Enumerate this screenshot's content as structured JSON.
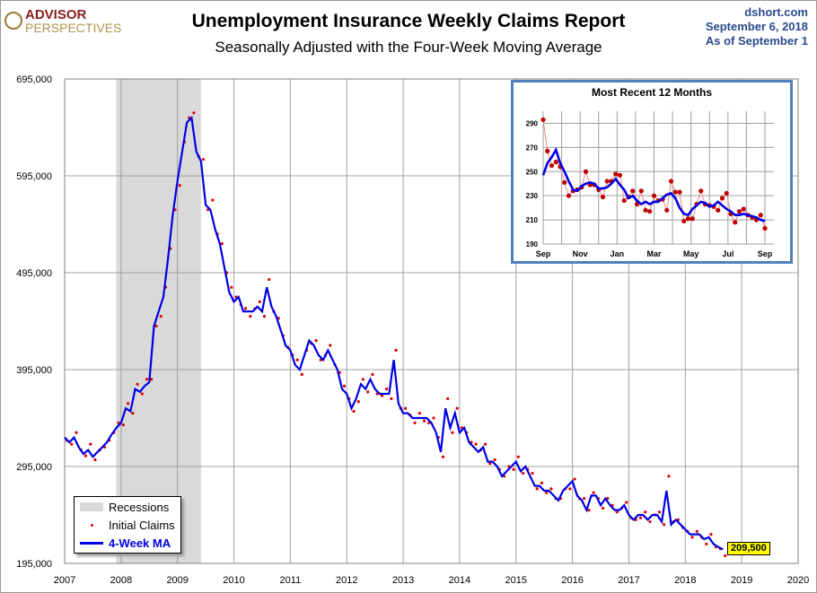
{
  "header": {
    "logo_line1": "ADVISOR",
    "logo_line2": "PERSPECTIVES",
    "site": "dshort.com",
    "date": "September 6, 2018",
    "as_of": "As of September 1"
  },
  "colors": {
    "claims": "#e00000",
    "ma": "#0000e6",
    "recession": "#d9d9d9",
    "inset_border": "#4f81bd",
    "inset_claims": "#c00000",
    "badge": "#ffff00"
  },
  "chart_data": [
    {
      "type": "line",
      "title": "Unemployment Insurance Weekly Claims Report",
      "subtitle": "Seasonally Adjusted with the Four-Week Moving Average",
      "x_ticks": [
        "2007",
        "2008",
        "2009",
        "2010",
        "2011",
        "2012",
        "2013",
        "2014",
        "2015",
        "2016",
        "2017",
        "2018",
        "2019",
        "2020"
      ],
      "y_ticks": [
        "195,000",
        "295,000",
        "395,000",
        "495,000",
        "595,000",
        "695,000"
      ],
      "ylim": [
        195000,
        695000
      ],
      "xlim": [
        2007,
        2020
      ],
      "grid": true,
      "legend_placement": "bottom-left",
      "legend": [
        "Recessions",
        "Initial Claims",
        "4-Week MA"
      ],
      "recessions": [
        [
          "2007-12",
          "2009-06"
        ]
      ],
      "x_start": "2007-01",
      "x_step": "monthly",
      "latest_label": "209,500",
      "series": [
        {
          "name": "Initial Claims",
          "style": "dots",
          "values": [
            322000,
            318000,
            330000,
            312000,
            306000,
            318000,
            302000,
            312000,
            315000,
            322000,
            330000,
            340000,
            338000,
            360000,
            350000,
            380000,
            370000,
            385000,
            385000,
            440000,
            450000,
            480000,
            520000,
            560000,
            585000,
            630000,
            655000,
            660000,
            615000,
            612000,
            560000,
            570000,
            535000,
            525000,
            495000,
            480000,
            470000,
            462000,
            458000,
            450000,
            458000,
            465000,
            450000,
            488000,
            455000,
            448000,
            430000,
            418000,
            410000,
            405000,
            390000,
            415000,
            422000,
            425000,
            405000,
            410000,
            420000,
            400000,
            392000,
            378000,
            365000,
            352000,
            362000,
            385000,
            372000,
            390000,
            370000,
            368000,
            375000,
            365000,
            415000,
            355000,
            355000,
            348000,
            340000,
            350000,
            342000,
            340000,
            345000,
            325000,
            305000,
            365000,
            330000,
            355000,
            335000,
            330000,
            320000,
            318000,
            312000,
            318000,
            298000,
            302000,
            292000,
            285000,
            295000,
            292000,
            305000,
            288000,
            292000,
            288000,
            272000,
            278000,
            268000,
            272000,
            262000,
            262000,
            272000,
            272000,
            282000,
            262000,
            262000,
            250000,
            268000,
            262000,
            252000,
            262000,
            255000,
            248000,
            252000,
            258000,
            242000,
            240000,
            242000,
            248000,
            238000,
            245000,
            248000,
            235000,
            285000,
            238000,
            240000,
            232000,
            228000,
            222000,
            228000,
            222000,
            215000,
            225000,
            212000,
            210000,
            203000
          ]
        },
        {
          "name": "4-Week MA",
          "style": "line",
          "values": [
            325000,
            320000,
            325000,
            315000,
            308000,
            312000,
            305000,
            310000,
            315000,
            320000,
            328000,
            335000,
            340000,
            355000,
            352000,
            375000,
            372000,
            378000,
            382000,
            440000,
            455000,
            470000,
            510000,
            555000,
            590000,
            620000,
            650000,
            655000,
            620000,
            610000,
            565000,
            560000,
            540000,
            525000,
            500000,
            475000,
            465000,
            470000,
            455000,
            455000,
            455000,
            460000,
            455000,
            480000,
            460000,
            450000,
            435000,
            420000,
            415000,
            400000,
            395000,
            410000,
            425000,
            420000,
            410000,
            405000,
            415000,
            405000,
            395000,
            375000,
            370000,
            355000,
            365000,
            380000,
            375000,
            385000,
            375000,
            370000,
            370000,
            370000,
            405000,
            360000,
            350000,
            350000,
            345000,
            345000,
            345000,
            345000,
            340000,
            330000,
            310000,
            355000,
            335000,
            350000,
            330000,
            335000,
            320000,
            315000,
            310000,
            315000,
            300000,
            300000,
            295000,
            285000,
            290000,
            295000,
            300000,
            290000,
            295000,
            285000,
            275000,
            275000,
            270000,
            270000,
            265000,
            260000,
            270000,
            275000,
            280000,
            265000,
            260000,
            250000,
            265000,
            265000,
            255000,
            262000,
            255000,
            250000,
            250000,
            255000,
            245000,
            240000,
            245000,
            245000,
            240000,
            245000,
            245000,
            238000,
            270000,
            235000,
            240000,
            235000,
            230000,
            225000,
            225000,
            225000,
            220000,
            222000,
            215000,
            212000,
            209500
          ]
        }
      ]
    },
    {
      "type": "line",
      "title": "Most Recent 12 Months",
      "x_ticks": [
        "Sep",
        "Nov",
        "Jan",
        "Mar",
        "May",
        "Jul",
        "Sep"
      ],
      "y_ticks": [
        "190",
        "210",
        "230",
        "250",
        "270",
        "290"
      ],
      "ylim": [
        190,
        300
      ],
      "grid": true,
      "units": "thousands",
      "series": [
        {
          "name": "Initial Claims",
          "style": "dots",
          "values": [
            293,
            267,
            255,
            258,
            254,
            241,
            230,
            234,
            235,
            237,
            250,
            239,
            239,
            235,
            229,
            242,
            242,
            248,
            247,
            226,
            229,
            234,
            223,
            234,
            218,
            217,
            230,
            226,
            227,
            218,
            242,
            233,
            233,
            209,
            211,
            211,
            223,
            234,
            223,
            222,
            221,
            218,
            228,
            232,
            215,
            208,
            217,
            219,
            214,
            212,
            210,
            214,
            203
          ]
        },
        {
          "name": "4-Week MA",
          "style": "line",
          "values": [
            247,
            257,
            262,
            268,
            257,
            250,
            242,
            235,
            234,
            238,
            240,
            241,
            240,
            236,
            236,
            237,
            240,
            244,
            239,
            235,
            228,
            230,
            226,
            223,
            225,
            223,
            225,
            225,
            228,
            231,
            232,
            228,
            220,
            215,
            214,
            219,
            222,
            225,
            224,
            221,
            222,
            225,
            222,
            219,
            217,
            214,
            214,
            215,
            214,
            213,
            212,
            210,
            209
          ]
        }
      ]
    }
  ]
}
